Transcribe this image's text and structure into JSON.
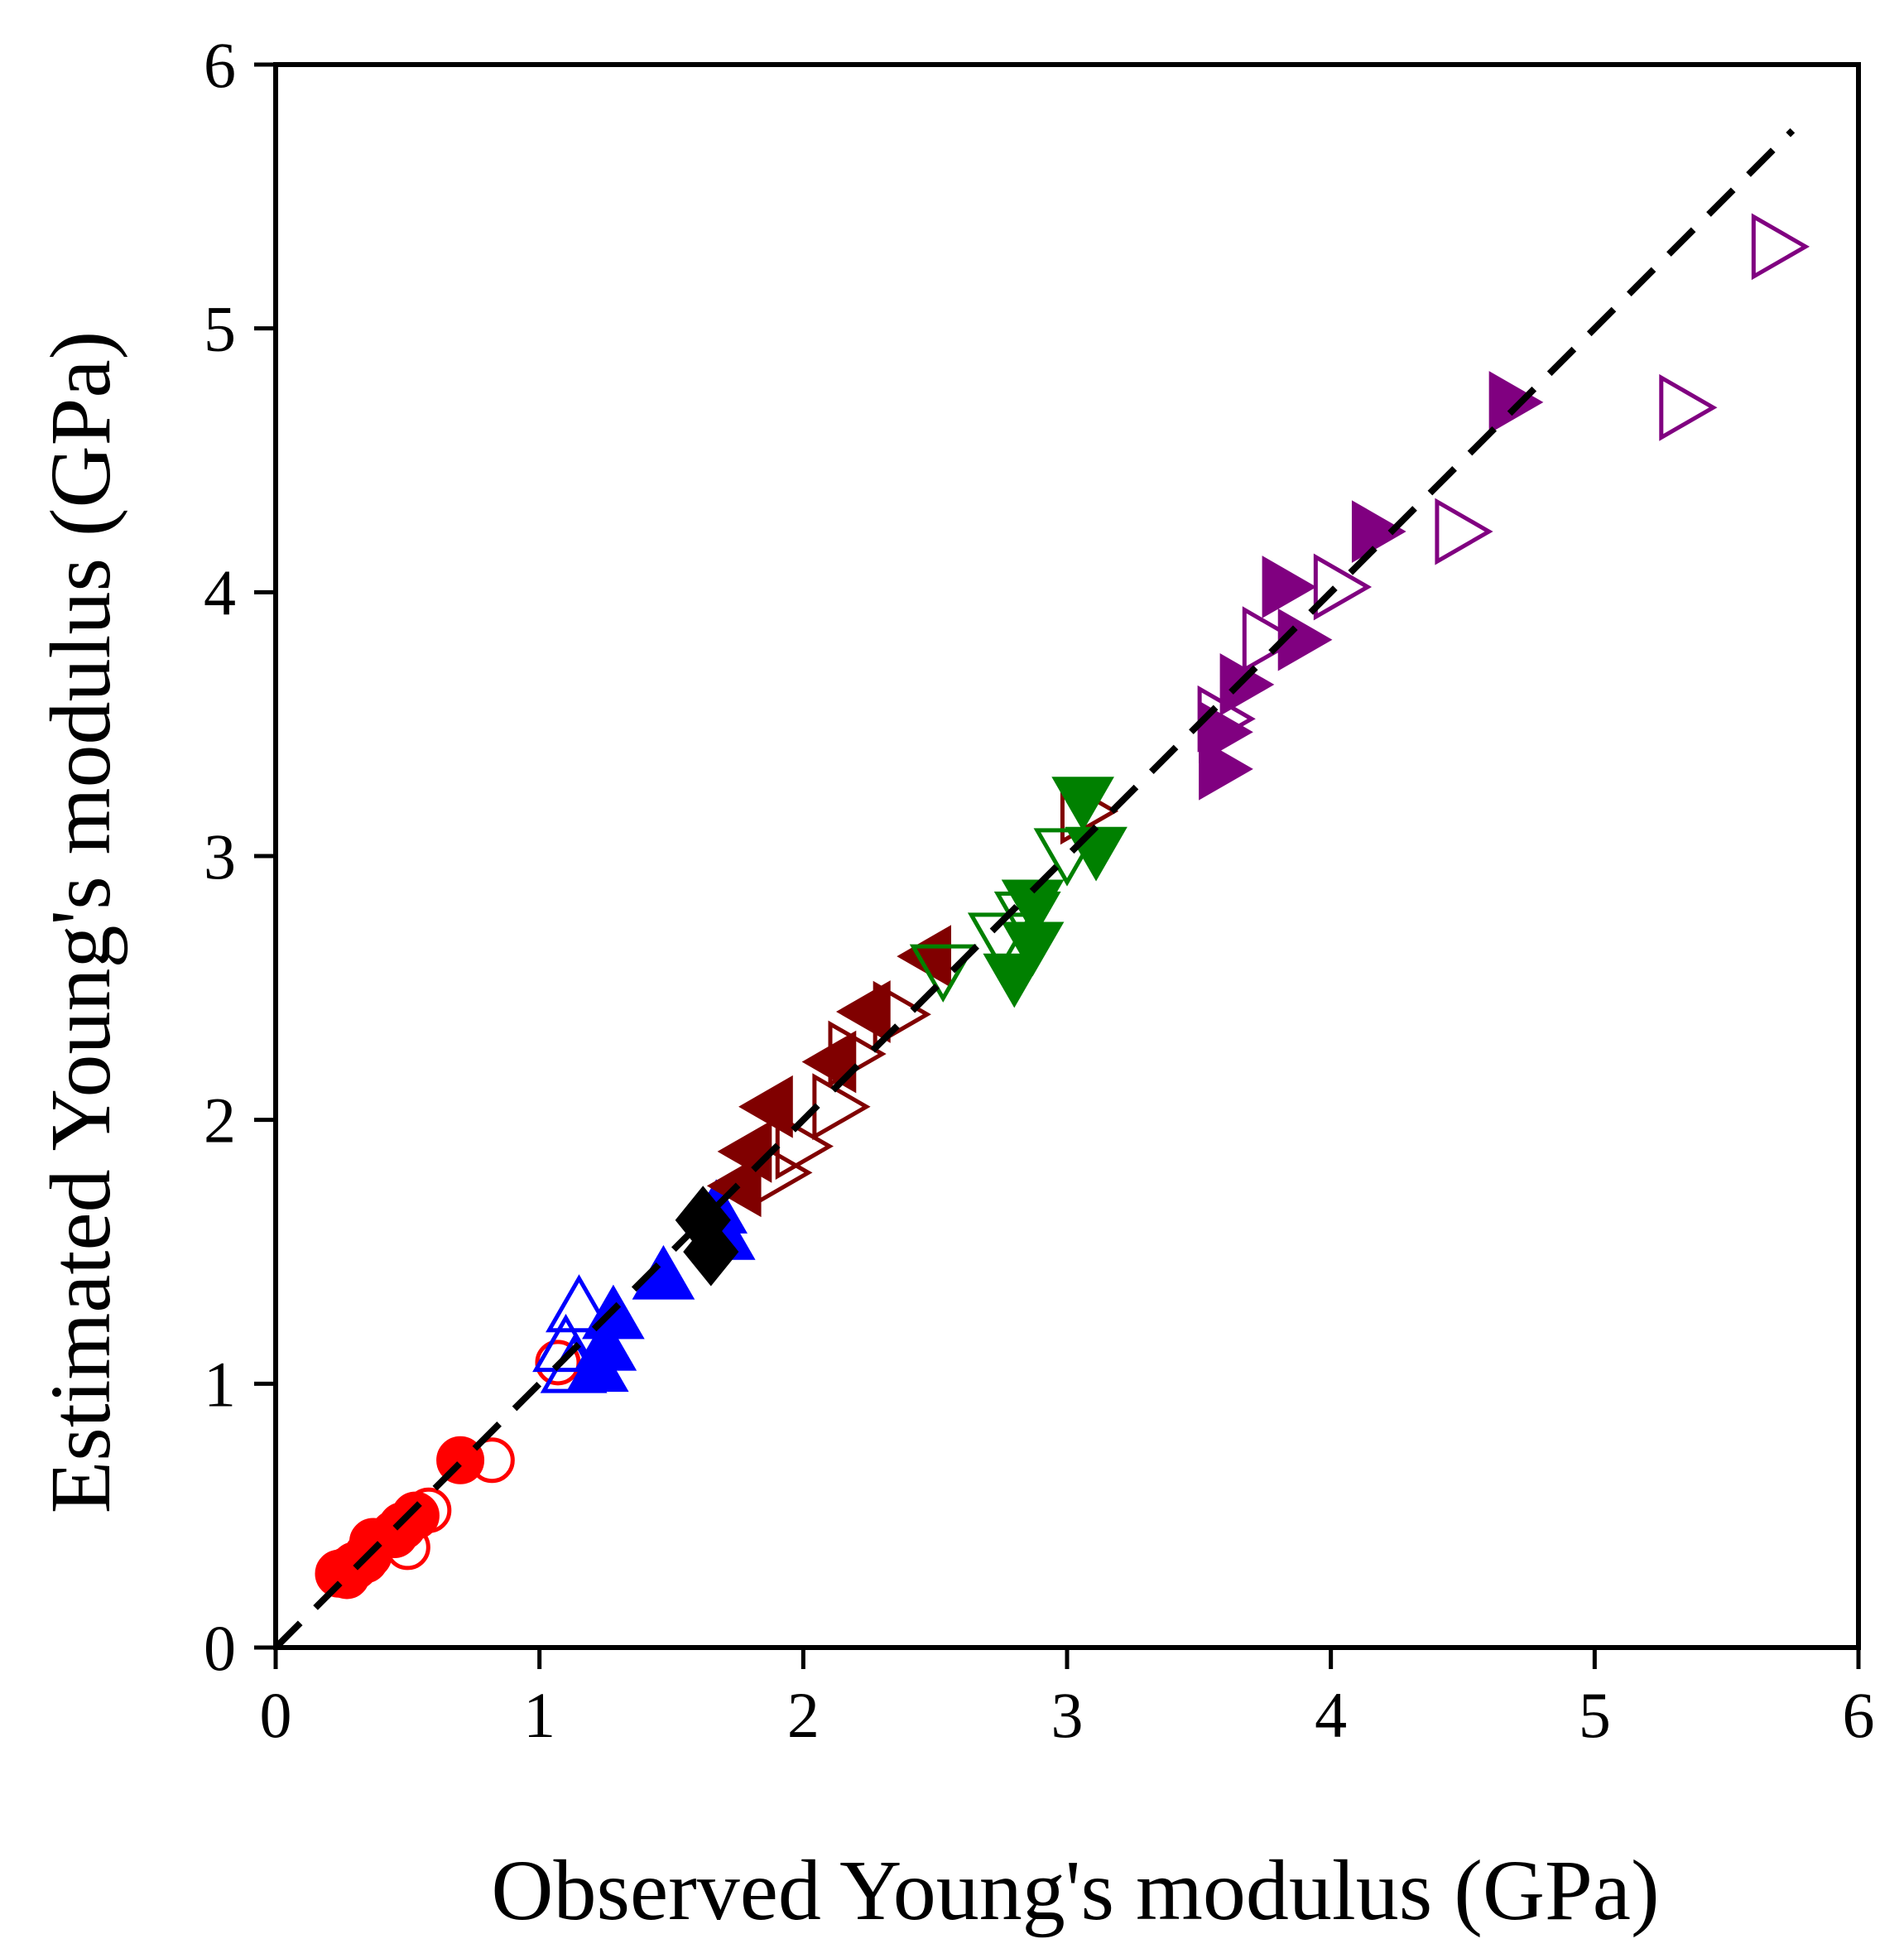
{
  "chart_data": {
    "type": "scatter",
    "title": "",
    "xlabel": "Observed Young's modulus (GPa)",
    "ylabel": "Estimated Young's modulus (GPa)",
    "xlim": [
      0,
      6
    ],
    "ylim": [
      0,
      6
    ],
    "xticks": [
      "0",
      "1",
      "2",
      "3",
      "4",
      "5",
      "6"
    ],
    "yticks": [
      "0",
      "1",
      "2",
      "3",
      "4",
      "5",
      "6"
    ],
    "grid": false,
    "reference_line": {
      "name": "1:1 line",
      "style": "dashed",
      "color": "#000000",
      "from": [
        0,
        0
      ],
      "to": [
        5.75,
        5.75
      ]
    },
    "series": [
      {
        "name": "red-filled",
        "marker": "circle",
        "fill": "filled",
        "color": "#ff0000",
        "points": [
          [
            0.24,
            0.28
          ],
          [
            0.27,
            0.29
          ],
          [
            0.3,
            0.31
          ],
          [
            0.35,
            0.35
          ],
          [
            0.37,
            0.4
          ],
          [
            0.45,
            0.43
          ],
          [
            0.48,
            0.46
          ],
          [
            0.53,
            0.5
          ],
          [
            0.7,
            0.71
          ]
        ]
      },
      {
        "name": "red-open",
        "marker": "circle",
        "fill": "open",
        "color": "#ff0000",
        "points": [
          [
            0.27,
            0.27
          ],
          [
            0.34,
            0.33
          ],
          [
            0.5,
            0.38
          ],
          [
            0.58,
            0.52
          ],
          [
            0.82,
            0.71
          ],
          [
            1.07,
            1.08
          ]
        ]
      },
      {
        "name": "blue-filled",
        "marker": "triangle-up",
        "fill": "filled",
        "color": "#0000ff",
        "points": [
          [
            1.22,
            1.05
          ],
          [
            1.25,
            1.13
          ],
          [
            1.28,
            1.25
          ],
          [
            1.47,
            1.4
          ],
          [
            1.7,
            1.55
          ],
          [
            1.67,
            1.65
          ]
        ]
      },
      {
        "name": "blue-open",
        "marker": "triangle-up",
        "fill": "open",
        "color": "#0000ff",
        "points": [
          [
            1.1,
            1.13
          ],
          [
            1.13,
            1.05
          ],
          [
            1.15,
            1.28
          ]
        ]
      },
      {
        "name": "black-filled",
        "marker": "diamond",
        "fill": "filled",
        "color": "#000000",
        "points": [
          [
            1.62,
            1.62
          ],
          [
            1.65,
            1.5
          ]
        ]
      },
      {
        "name": "darkred-filled",
        "marker": "triangle-left",
        "fill": "filled",
        "color": "#800000",
        "points": [
          [
            1.76,
            1.75
          ],
          [
            1.8,
            1.88
          ],
          [
            1.88,
            2.05
          ],
          [
            2.12,
            2.22
          ],
          [
            2.25,
            2.41
          ],
          [
            2.48,
            2.62
          ]
        ]
      },
      {
        "name": "darkred-open",
        "marker": "triangle-right",
        "fill": "open",
        "color": "#800000",
        "points": [
          [
            1.9,
            1.8
          ],
          [
            1.98,
            1.9
          ],
          [
            2.12,
            2.05
          ],
          [
            2.18,
            2.25
          ],
          [
            2.35,
            2.4
          ],
          [
            3.06,
            3.17
          ]
        ]
      },
      {
        "name": "green-filled",
        "marker": "triangle-down",
        "fill": "filled",
        "color": "#008000",
        "points": [
          [
            2.8,
            2.55
          ],
          [
            2.87,
            2.67
          ],
          [
            2.87,
            2.83
          ],
          [
            3.06,
            3.22
          ],
          [
            3.11,
            3.03
          ]
        ]
      },
      {
        "name": "green-open",
        "marker": "triangle-down",
        "fill": "open",
        "color": "#008000",
        "points": [
          [
            2.53,
            2.58
          ],
          [
            2.75,
            2.7
          ],
          [
            2.85,
            2.78
          ],
          [
            3.0,
            3.02
          ]
        ]
      },
      {
        "name": "purple-filled",
        "marker": "triangle-right",
        "fill": "filled",
        "color": "#800080",
        "points": [
          [
            3.58,
            3.33
          ],
          [
            3.58,
            3.47
          ],
          [
            3.66,
            3.65
          ],
          [
            3.82,
            4.02
          ],
          [
            3.88,
            3.82
          ],
          [
            4.16,
            4.23
          ],
          [
            4.68,
            4.72
          ]
        ]
      },
      {
        "name": "purple-open",
        "marker": "triangle-right",
        "fill": "open",
        "color": "#800080",
        "points": [
          [
            3.58,
            3.52
          ],
          [
            3.75,
            3.82
          ],
          [
            4.02,
            4.02
          ],
          [
            4.48,
            4.23
          ],
          [
            5.33,
            4.7
          ],
          [
            5.68,
            5.31
          ]
        ]
      }
    ]
  }
}
